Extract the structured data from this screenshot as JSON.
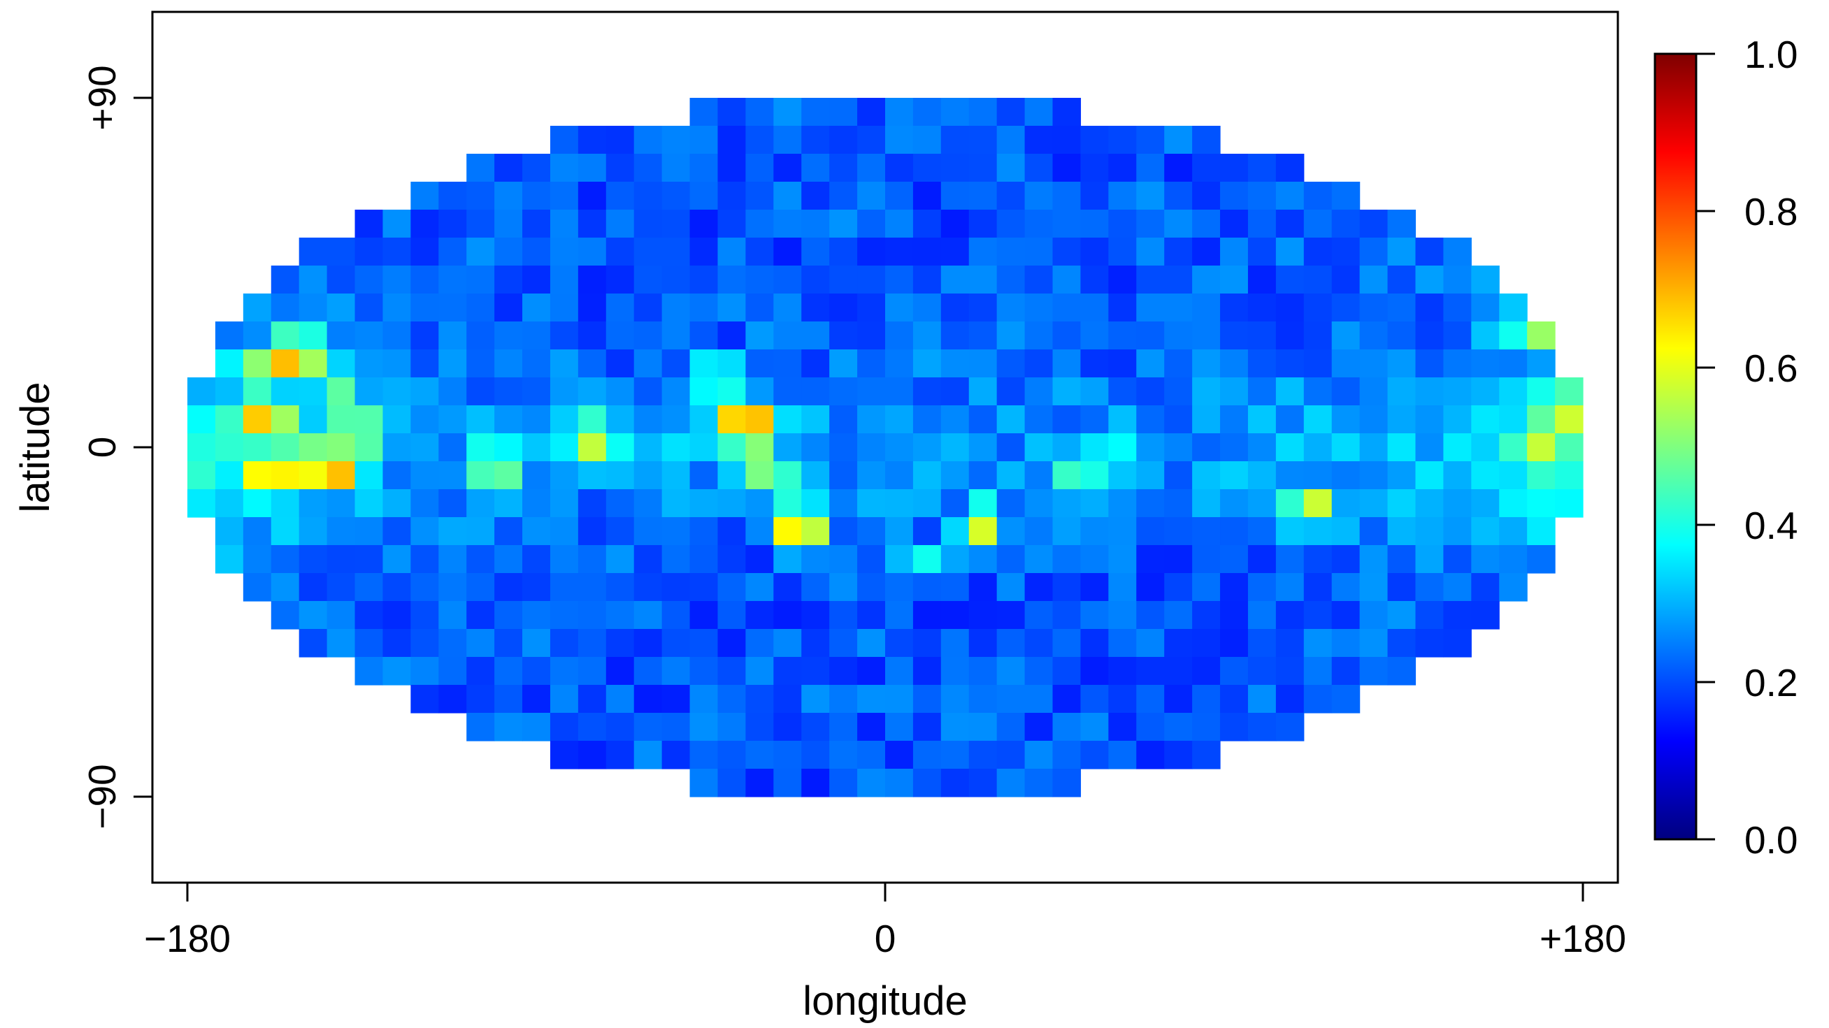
{
  "chart_data": {
    "type": "heatmap",
    "projection": "mollweide",
    "xlabel": "longitude",
    "ylabel": "latitude",
    "x_ticks": [
      {
        "value": -180,
        "label": "−180"
      },
      {
        "value": 0,
        "label": "0"
      },
      {
        "value": 180,
        "label": "+180"
      }
    ],
    "y_ticks": [
      {
        "value": 90,
        "label": "+90"
      },
      {
        "value": 0,
        "label": "0"
      },
      {
        "value": -90,
        "label": "−90"
      }
    ],
    "xlim": [
      -180,
      180
    ],
    "ylim": [
      -90,
      90
    ],
    "grid": false,
    "legend": "colorbar-right",
    "colorbar": {
      "range": [
        0,
        1
      ],
      "ticks": [
        {
          "value": 1.0,
          "label": "1.0"
        },
        {
          "value": 0.8,
          "label": "0.8"
        },
        {
          "value": 0.6,
          "label": "0.6"
        },
        {
          "value": 0.4,
          "label": "0.4"
        },
        {
          "value": 0.2,
          "label": "0.2"
        },
        {
          "value": 0.0,
          "label": "0.0"
        }
      ],
      "colormap": [
        "#00007f",
        "#0000ff",
        "#007fff",
        "#00ffff",
        "#7fff7f",
        "#ffff00",
        "#ff7f00",
        "#ff0000",
        "#7f0000"
      ]
    },
    "grid_bins": {
      "lon_bins": 50,
      "lat_bins": 25,
      "lon_step": 7.2,
      "lat_step": 7.2
    },
    "background_level": 0.21,
    "hotspots": [
      {
        "lon": -160,
        "lat": 8,
        "value": 0.72
      },
      {
        "lon": -160,
        "lat": -8,
        "value": 0.66
      },
      {
        "lon": -158,
        "lat": 22,
        "value": 0.6
      },
      {
        "lon": -152,
        "lat": 24,
        "value": 0.78
      },
      {
        "lon": -152,
        "lat": -5,
        "value": 0.72
      },
      {
        "lon": -142,
        "lat": -5,
        "value": 0.8
      },
      {
        "lon": -136,
        "lat": 4,
        "value": 0.62
      },
      {
        "lon": -140,
        "lat": 12,
        "value": 0.5
      },
      {
        "lon": -75,
        "lat": 2,
        "value": 0.62
      },
      {
        "lon": -100,
        "lat": -5,
        "value": 0.58
      },
      {
        "lon": -35,
        "lat": 2,
        "value": 0.6
      },
      {
        "lon": -36,
        "lat": 8,
        "value": 0.82
      },
      {
        "lon": -30,
        "lat": -8,
        "value": 0.55
      },
      {
        "lon": -22,
        "lat": -20,
        "value": 0.82
      },
      {
        "lon": 25,
        "lat": -20,
        "value": 0.62
      },
      {
        "lon": 10,
        "lat": -30,
        "value": 0.4
      },
      {
        "lon": -45,
        "lat": 18,
        "value": 0.5
      },
      {
        "lon": -55,
        "lat": 0,
        "value": 0.35
      },
      {
        "lon": 110,
        "lat": -16,
        "value": 0.64
      },
      {
        "lon": 175,
        "lat": 10,
        "value": 0.66
      },
      {
        "lon": 168,
        "lat": -2,
        "value": 0.62
      },
      {
        "lon": 168,
        "lat": 30,
        "value": 0.55
      },
      {
        "lon": 180,
        "lat": 0,
        "value": 0.45
      },
      {
        "lon": 50,
        "lat": -5,
        "value": 0.5
      },
      {
        "lon": 60,
        "lat": 0,
        "value": 0.38
      }
    ]
  }
}
